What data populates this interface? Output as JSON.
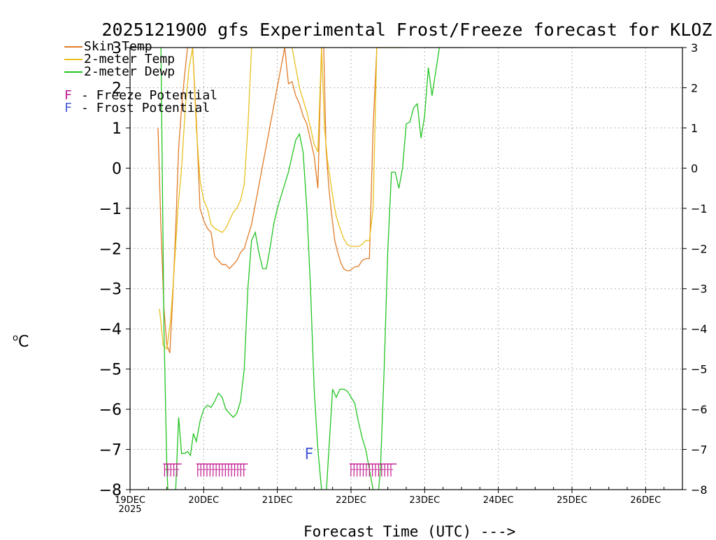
{
  "chart_data": {
    "type": "line",
    "title": "2025121900 gfs Experimental Frost/Freeze forecast for KLOZ",
    "ylabel": "C",
    "ylabel_prefix": "o",
    "xlabel": "Forecast Time (UTC) --->",
    "ylim": [
      -8,
      3
    ],
    "xlim": [
      0,
      7.5
    ],
    "yticks": [
      -8,
      -7,
      -6,
      -5,
      -4,
      -3,
      -2,
      -1,
      0,
      1,
      2,
      3
    ],
    "xtick_labels": [
      "19DEC",
      "20DEC",
      "21DEC",
      "22DEC",
      "23DEC",
      "24DEC",
      "25DEC",
      "26DEC"
    ],
    "xtick_year": "2025",
    "grid": true,
    "legend": {
      "position": "top-left",
      "entries": [
        {
          "name": "Skin Temp",
          "color": "#e07b28"
        },
        {
          "name": "2-meter Temp",
          "color": "#e8c020"
        },
        {
          "name": "2-meter Dewp",
          "color": "#22c422"
        }
      ],
      "flags": [
        {
          "char": "F",
          "text": "- Freeze Potential",
          "color": "#c01890"
        },
        {
          "char": "F",
          "text": "- Frost Potential",
          "color": "#4a5ad8"
        }
      ]
    },
    "series": [
      {
        "name": "Skin Temp",
        "color": "#e07b28",
        "x": [
          0.38,
          0.42,
          0.46,
          0.5,
          0.54,
          0.58,
          0.62,
          0.66,
          0.7,
          0.74,
          0.78,
          0.85,
          0.9,
          0.95,
          1.0,
          1.05,
          1.1,
          1.15,
          1.2,
          1.25,
          1.3,
          1.35,
          1.4,
          1.45,
          1.5,
          1.55,
          1.6,
          1.65,
          2.1,
          2.15,
          2.2,
          2.25,
          2.3,
          2.35,
          2.4,
          2.45,
          2.5,
          2.55,
          2.6,
          2.63,
          2.66,
          2.7,
          2.74,
          2.78,
          2.82,
          2.86,
          2.9,
          2.94,
          2.98,
          3.02,
          3.06,
          3.1,
          3.15,
          3.2,
          3.25,
          3.3,
          3.35,
          3.4,
          3.45,
          3.5,
          3.55,
          3.6,
          3.65,
          3.7
        ],
        "y": [
          1.0,
          -1.5,
          -3.5,
          -4.4,
          -4.6,
          -3.2,
          -1.5,
          0.5,
          1.5,
          2.3,
          3.0,
          3.0,
          1.2,
          -1.0,
          -1.3,
          -1.5,
          -1.6,
          -2.2,
          -2.3,
          -2.4,
          -2.4,
          -2.5,
          -2.4,
          -2.3,
          -2.1,
          -2.0,
          -1.7,
          -1.4,
          3.0,
          2.1,
          2.15,
          1.8,
          1.6,
          1.3,
          1.1,
          0.7,
          0.3,
          -0.5,
          3.0,
          3.0,
          0.5,
          -0.5,
          -1.2,
          -1.8,
          -2.1,
          -2.35,
          -2.5,
          -2.55,
          -2.55,
          -2.5,
          -2.45,
          -2.45,
          -2.3,
          -2.25,
          -2.25,
          1.0,
          3.0,
          3.0,
          3.0,
          3.0,
          3.0,
          3.0,
          3.0,
          3.0
        ]
      },
      {
        "name": "2-meter Temp",
        "color": "#e8c020",
        "x": [
          0.4,
          0.45,
          0.5,
          0.55,
          0.6,
          0.65,
          0.7,
          0.75,
          0.8,
          0.85,
          0.9,
          0.95,
          1.0,
          1.05,
          1.1,
          1.15,
          1.2,
          1.25,
          1.3,
          1.35,
          1.4,
          1.45,
          1.5,
          1.55,
          1.6,
          1.65,
          2.2,
          2.25,
          2.3,
          2.35,
          2.4,
          2.45,
          2.5,
          2.55,
          2.6,
          2.64,
          2.68,
          2.72,
          2.76,
          2.8,
          2.85,
          2.9,
          2.95,
          3.0,
          3.05,
          3.1,
          3.15,
          3.2,
          3.25,
          3.3,
          3.35,
          3.4,
          3.45,
          3.5,
          3.55,
          3.6,
          3.65,
          3.7
        ],
        "y": [
          -3.5,
          -4.4,
          -4.5,
          -3.8,
          -2.5,
          -1.0,
          0.0,
          1.5,
          2.5,
          3.0,
          1.0,
          -0.3,
          -0.8,
          -1.0,
          -1.4,
          -1.5,
          -1.55,
          -1.6,
          -1.5,
          -1.3,
          -1.1,
          -1.0,
          -0.8,
          -0.4,
          1.0,
          3.0,
          3.0,
          2.5,
          2.0,
          1.7,
          1.4,
          1.0,
          0.6,
          0.4,
          3.0,
          1.0,
          0.2,
          -0.3,
          -0.8,
          -1.2,
          -1.5,
          -1.75,
          -1.9,
          -1.95,
          -1.95,
          -1.95,
          -1.9,
          -1.8,
          -1.8,
          -1.0,
          3.0,
          3.0,
          3.0,
          3.0,
          3.0,
          3.0,
          3.0,
          3.0
        ]
      },
      {
        "name": "2-meter Dewp",
        "color": "#22c422",
        "x": [
          0.42,
          0.46,
          0.5,
          0.54,
          0.58,
          0.62,
          0.66,
          0.7,
          0.74,
          0.78,
          0.82,
          0.86,
          0.9,
          0.95,
          1.0,
          1.05,
          1.1,
          1.15,
          1.2,
          1.25,
          1.3,
          1.35,
          1.4,
          1.45,
          1.5,
          1.55,
          1.6,
          1.65,
          1.7,
          1.75,
          1.8,
          1.85,
          1.9,
          1.95,
          2.0,
          2.05,
          2.1,
          2.15,
          2.2,
          2.25,
          2.3,
          2.35,
          2.4,
          2.45,
          2.5,
          2.55,
          2.6,
          2.65,
          2.7,
          2.75,
          2.8,
          2.85,
          2.9,
          2.95,
          3.0,
          3.05,
          3.1,
          3.15,
          3.2,
          3.25,
          3.3,
          3.35,
          3.4,
          3.45,
          3.5,
          3.55,
          3.6,
          3.65,
          3.7,
          3.75,
          3.8,
          3.85,
          3.9,
          3.95,
          4.0,
          4.05,
          4.1,
          4.15,
          4.2,
          4.25,
          4.3,
          4.35,
          4.4,
          4.45,
          4.5,
          4.55
        ],
        "y": [
          3.0,
          -4.0,
          -7.5,
          -9.0,
          -9.0,
          -8.0,
          -6.2,
          -7.1,
          -7.1,
          -7.05,
          -7.15,
          -6.6,
          -6.8,
          -6.3,
          -6.0,
          -5.9,
          -5.95,
          -5.8,
          -5.6,
          -5.7,
          -6.0,
          -6.1,
          -6.2,
          -6.1,
          -5.8,
          -5.0,
          -3.0,
          -1.8,
          -1.6,
          -2.1,
          -2.5,
          -2.5,
          -2.0,
          -1.4,
          -1.0,
          -0.7,
          -0.4,
          -0.1,
          0.3,
          0.7,
          0.85,
          0.4,
          -1.0,
          -3.0,
          -5.5,
          -7.0,
          -8.0,
          -8.5,
          -7.0,
          -5.5,
          -5.7,
          -5.5,
          -5.5,
          -5.55,
          -5.7,
          -5.85,
          -6.3,
          -6.7,
          -7.0,
          -7.5,
          -8.0,
          -8.5,
          -7.5,
          -5.0,
          -2.0,
          -0.1,
          -0.1,
          -0.5,
          0.0,
          1.1,
          1.15,
          1.5,
          1.6,
          0.75,
          1.3,
          2.5,
          1.8,
          2.4,
          3.0,
          3.0,
          3.0,
          3.0,
          3.0,
          3.0,
          3.0,
          3.0
        ]
      }
    ],
    "flags": [
      {
        "label": "F",
        "kind": "freeze",
        "x_start": 0.45,
        "x_end": 0.7,
        "y": -7.5
      },
      {
        "label": "F",
        "kind": "freeze",
        "x_start": 0.9,
        "x_end": 1.6,
        "y": -7.5
      },
      {
        "label": "F",
        "kind": "freeze",
        "x_start": 2.98,
        "x_end": 3.62,
        "y": -7.5
      },
      {
        "label": "F",
        "kind": "frost",
        "x_start": 2.43,
        "x_end": 2.43,
        "y": -7.1
      }
    ]
  }
}
